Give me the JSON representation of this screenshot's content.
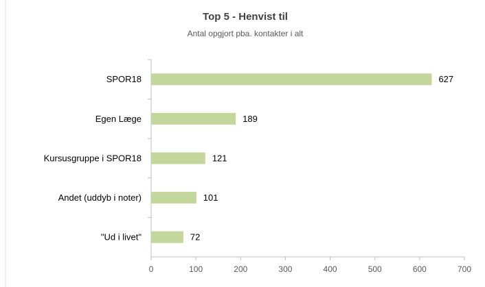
{
  "chart_data": {
    "type": "bar",
    "orientation": "horizontal",
    "title": "Top 5 - Henvist til",
    "subtitle": "Antal opgjort pba. kontakter i alt",
    "categories": [
      "SPOR18",
      "Egen Læge",
      "Kursusgruppe i SPOR18",
      "Andet (uddyb i noter)",
      "\"Ud i livet\""
    ],
    "values": [
      627,
      189,
      121,
      101,
      72
    ],
    "color": "#c3d69b",
    "xlim": [
      0,
      700
    ],
    "xticks": [
      0,
      100,
      200,
      300,
      400,
      500,
      600,
      700
    ]
  }
}
